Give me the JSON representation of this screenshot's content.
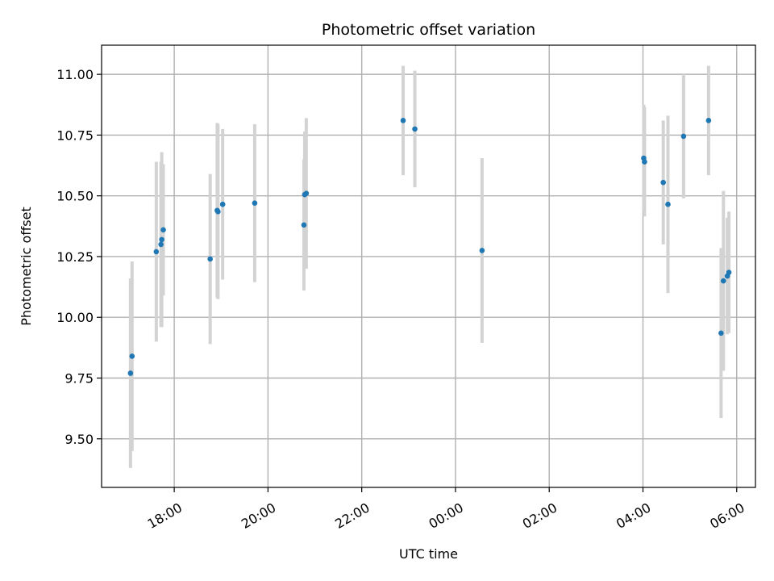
{
  "chart_data": {
    "type": "scatter",
    "title": "Photometric offset variation",
    "xlabel": "UTC time",
    "ylabel": "Photometric offset",
    "x_unit": "hours after 00:00 of first UTC day",
    "xlim": [
      "16:27",
      "06:24"
    ],
    "ylim": [
      9.3,
      11.12
    ],
    "grid": true,
    "x_ticks": [
      {
        "value": "18:00",
        "label": "18:00"
      },
      {
        "value": "20:00",
        "label": "20:00"
      },
      {
        "value": "22:00",
        "label": "22:00"
      },
      {
        "value": "00:00",
        "label": "00:00"
      },
      {
        "value": "02:00",
        "label": "02:00"
      },
      {
        "value": "04:00",
        "label": "04:00"
      },
      {
        "value": "06:00",
        "label": "06:00"
      }
    ],
    "y_ticks": [
      {
        "value": 9.5,
        "label": "9.50"
      },
      {
        "value": 9.75,
        "label": "9.75"
      },
      {
        "value": 10.0,
        "label": "10.00"
      },
      {
        "value": 10.25,
        "label": "10.25"
      },
      {
        "value": 10.5,
        "label": "10.50"
      },
      {
        "value": 10.75,
        "label": "10.75"
      },
      {
        "value": 11.0,
        "label": "11.00"
      }
    ],
    "colors": {
      "points": "#1f77b4",
      "error_bars": "#d3d3d3",
      "grid": "#b0b0b0"
    },
    "points": [
      {
        "x": "17:04",
        "y": 9.77,
        "err": 0.39
      },
      {
        "x": "17:06",
        "y": 9.84,
        "err": 0.39
      },
      {
        "x": "17:37",
        "y": 10.27,
        "err": 0.37
      },
      {
        "x": "17:43",
        "y": 10.3,
        "err": 0.34
      },
      {
        "x": "17:44",
        "y": 10.32,
        "err": 0.36
      },
      {
        "x": "17:46",
        "y": 10.36,
        "err": 0.27
      },
      {
        "x": "18:46",
        "y": 10.24,
        "err": 0.35
      },
      {
        "x": "18:55",
        "y": 10.44,
        "err": 0.36
      },
      {
        "x": "18:56",
        "y": 10.435,
        "err": 0.36
      },
      {
        "x": "19:02",
        "y": 10.465,
        "err": 0.31
      },
      {
        "x": "19:43",
        "y": 10.47,
        "err": 0.325
      },
      {
        "x": "20:46",
        "y": 10.38,
        "err": 0.27
      },
      {
        "x": "20:47",
        "y": 10.505,
        "err": 0.26
      },
      {
        "x": "20:49",
        "y": 10.51,
        "err": 0.31
      },
      {
        "x": "22:53",
        "y": 10.81,
        "err": 0.225
      },
      {
        "x": "23:08",
        "y": 10.775,
        "err": 0.24
      },
      {
        "x": "00:34",
        "y": 10.275,
        "err": 0.38
      },
      {
        "x": "04:01",
        "y": 10.655,
        "err": 0.22
      },
      {
        "x": "04:02",
        "y": 10.64,
        "err": 0.225
      },
      {
        "x": "04:26",
        "y": 10.555,
        "err": 0.255
      },
      {
        "x": "04:32",
        "y": 10.465,
        "err": 0.365
      },
      {
        "x": "04:52",
        "y": 10.745,
        "err": 0.255
      },
      {
        "x": "05:24",
        "y": 10.81,
        "err": 0.225
      },
      {
        "x": "05:40",
        "y": 9.935,
        "err": 0.35
      },
      {
        "x": "05:43",
        "y": 10.15,
        "err": 0.37
      },
      {
        "x": "05:48",
        "y": 10.17,
        "err": 0.24
      },
      {
        "x": "05:50",
        "y": 10.185,
        "err": 0.25
      }
    ]
  }
}
